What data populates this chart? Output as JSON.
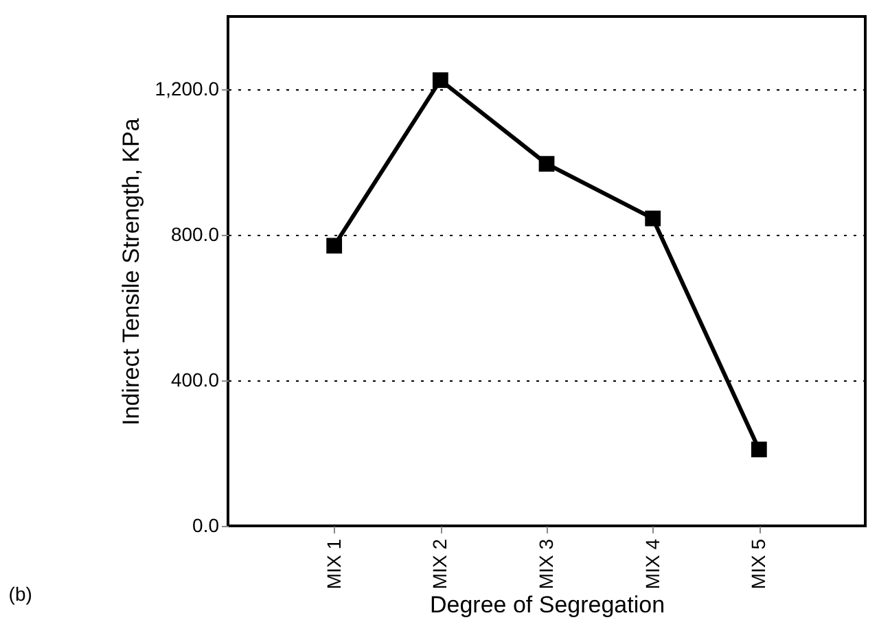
{
  "chart_data": {
    "type": "line",
    "xlabel": "Degree of Segregation",
    "ylabel": "Indirect Tensile Strength, KPa",
    "categories": [
      "MIX 1",
      "MIX 2",
      "MIX 3",
      "MIX 4",
      "MIX 5"
    ],
    "series": [
      {
        "color": "#000000",
        "values": [
          770,
          1225,
          995,
          845,
          210
        ]
      }
    ],
    "ylim": [
      0,
      1400
    ],
    "yticks": [
      {
        "value": 0,
        "label": "0.0"
      },
      {
        "value": 400,
        "label": "400.0"
      },
      {
        "value": 800,
        "label": "800.0"
      },
      {
        "value": 1200,
        "label": "1,200.0"
      }
    ],
    "grid": "y",
    "marker": "square",
    "line_style": "solid",
    "legend": false,
    "annotations": [
      "(b)"
    ]
  }
}
